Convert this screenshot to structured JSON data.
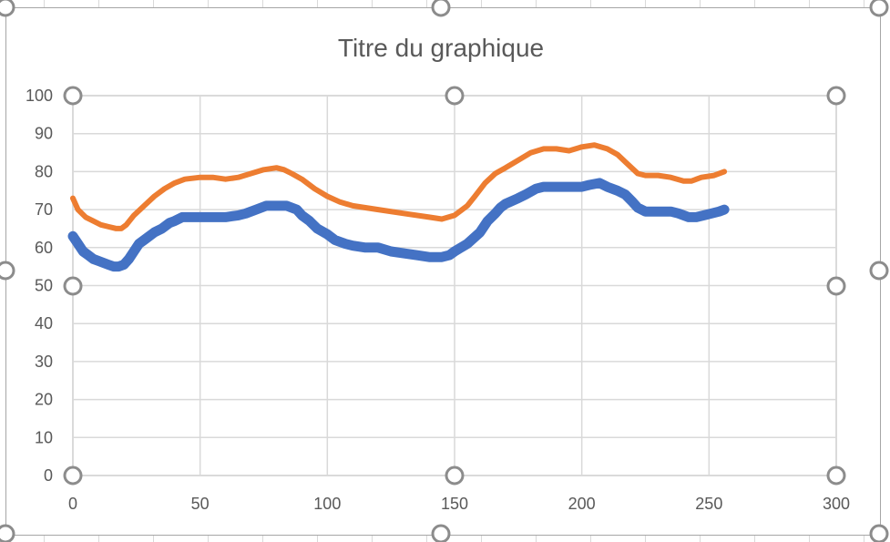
{
  "chart_data": {
    "type": "scatter",
    "title": "Titre du graphique",
    "xlim": [
      0,
      300
    ],
    "ylim": [
      0,
      100
    ],
    "x_ticks": [
      0,
      50,
      100,
      150,
      200,
      250,
      300
    ],
    "y_ticks": [
      0,
      10,
      20,
      30,
      40,
      50,
      60,
      70,
      80,
      90,
      100
    ],
    "grid": true,
    "legend": "none",
    "series": [
      {
        "color": "#4472C4",
        "points": [
          [
            0,
            63
          ],
          [
            2,
            61
          ],
          [
            4,
            59
          ],
          [
            6,
            58
          ],
          [
            8,
            57
          ],
          [
            10,
            56.5
          ],
          [
            12,
            56
          ],
          [
            14,
            55.5
          ],
          [
            16,
            55
          ],
          [
            18,
            55
          ],
          [
            20,
            55.5
          ],
          [
            22,
            57
          ],
          [
            24,
            59
          ],
          [
            26,
            61
          ],
          [
            28,
            62
          ],
          [
            30,
            63
          ],
          [
            32,
            64
          ],
          [
            35,
            65
          ],
          [
            38,
            66.5
          ],
          [
            40,
            67
          ],
          [
            43,
            68
          ],
          [
            46,
            68
          ],
          [
            50,
            68
          ],
          [
            55,
            68
          ],
          [
            60,
            68
          ],
          [
            65,
            68.5
          ],
          [
            68,
            69
          ],
          [
            72,
            70
          ],
          [
            76,
            71
          ],
          [
            80,
            71
          ],
          [
            84,
            71
          ],
          [
            88,
            70
          ],
          [
            90,
            68.5
          ],
          [
            93,
            67
          ],
          [
            96,
            65
          ],
          [
            100,
            63.5
          ],
          [
            103,
            62
          ],
          [
            107,
            61
          ],
          [
            110,
            60.5
          ],
          [
            115,
            60
          ],
          [
            120,
            60
          ],
          [
            125,
            59
          ],
          [
            130,
            58.5
          ],
          [
            135,
            58
          ],
          [
            140,
            57.5
          ],
          [
            145,
            57.5
          ],
          [
            148,
            58
          ],
          [
            150,
            59
          ],
          [
            155,
            61
          ],
          [
            160,
            64
          ],
          [
            163,
            67
          ],
          [
            166,
            69
          ],
          [
            168,
            70.5
          ],
          [
            170,
            71.5
          ],
          [
            175,
            73
          ],
          [
            178,
            74
          ],
          [
            182,
            75.5
          ],
          [
            185,
            76
          ],
          [
            190,
            76
          ],
          [
            195,
            76
          ],
          [
            200,
            76
          ],
          [
            203,
            76.5
          ],
          [
            207,
            77
          ],
          [
            210,
            76
          ],
          [
            214,
            75
          ],
          [
            217,
            74
          ],
          [
            220,
            72
          ],
          [
            222,
            70.5
          ],
          [
            225,
            69.5
          ],
          [
            230,
            69.5
          ],
          [
            235,
            69.5
          ],
          [
            238,
            69
          ],
          [
            242,
            68
          ],
          [
            245,
            68
          ],
          [
            248,
            68.5
          ],
          [
            251,
            69
          ],
          [
            254,
            69.5
          ],
          [
            256,
            70
          ]
        ]
      },
      {
        "color": "#ED7D31",
        "points": [
          [
            0,
            73
          ],
          [
            2,
            70
          ],
          [
            5,
            68
          ],
          [
            8,
            67
          ],
          [
            11,
            66
          ],
          [
            14,
            65.5
          ],
          [
            17,
            65
          ],
          [
            19,
            65
          ],
          [
            21,
            66
          ],
          [
            24,
            68.5
          ],
          [
            28,
            71
          ],
          [
            32,
            73.5
          ],
          [
            36,
            75.5
          ],
          [
            40,
            77
          ],
          [
            44,
            78
          ],
          [
            50,
            78.5
          ],
          [
            55,
            78.5
          ],
          [
            60,
            78
          ],
          [
            65,
            78.5
          ],
          [
            70,
            79.5
          ],
          [
            75,
            80.5
          ],
          [
            80,
            81
          ],
          [
            83,
            80.5
          ],
          [
            86,
            79.5
          ],
          [
            90,
            78
          ],
          [
            95,
            75.5
          ],
          [
            100,
            73.5
          ],
          [
            105,
            72
          ],
          [
            110,
            71
          ],
          [
            120,
            70
          ],
          [
            130,
            69
          ],
          [
            140,
            68
          ],
          [
            145,
            67.5
          ],
          [
            150,
            68.5
          ],
          [
            155,
            71
          ],
          [
            158,
            73.5
          ],
          [
            162,
            77
          ],
          [
            166,
            79.5
          ],
          [
            170,
            81
          ],
          [
            175,
            83
          ],
          [
            180,
            85
          ],
          [
            185,
            86
          ],
          [
            190,
            86
          ],
          [
            195,
            85.5
          ],
          [
            200,
            86.5
          ],
          [
            205,
            87
          ],
          [
            210,
            86
          ],
          [
            214,
            84.5
          ],
          [
            218,
            82
          ],
          [
            222,
            79.5
          ],
          [
            225,
            79
          ],
          [
            230,
            79
          ],
          [
            235,
            78.5
          ],
          [
            240,
            77.5
          ],
          [
            243,
            77.5
          ],
          [
            247,
            78.5
          ],
          [
            252,
            79
          ],
          [
            256,
            80
          ]
        ]
      }
    ]
  }
}
